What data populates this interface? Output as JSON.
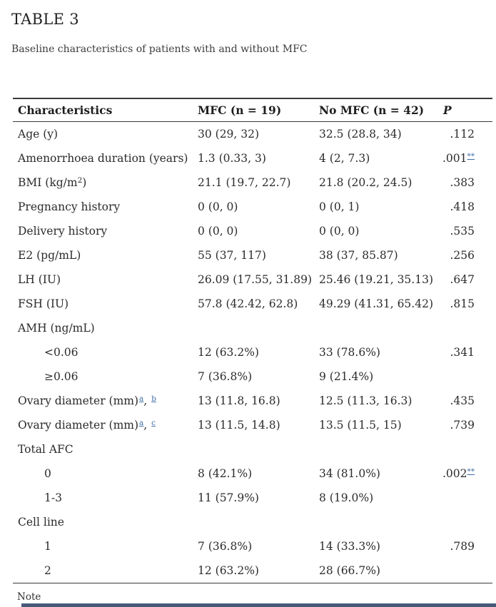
{
  "title": "TABLE 3",
  "caption": "Baseline characteristics of patients with and without MFC",
  "note": "Note",
  "colors": {
    "text": "#2b2b2b",
    "rule": "#3a3a3a",
    "footnote_link": "#3f6da5",
    "bottom_bar": "#46597a"
  },
  "table": {
    "columns": [
      "Characteristics",
      "MFC (n = 19)",
      "No MFC (n = 42)",
      "P"
    ],
    "rows": [
      {
        "label_parts": [
          {
            "t": "Age (y)"
          }
        ],
        "mfc": "30 (29, 32)",
        "no_mfc": "32.5 (28.8, 34)",
        "p": ".112"
      },
      {
        "label_parts": [
          {
            "t": "Amenorrhoea duration (years)"
          }
        ],
        "mfc": "1.3 (0.33, 3)",
        "no_mfc": "4 (2, 7.3)",
        "p": ".001",
        "p_sup": "**"
      },
      {
        "label_parts": [
          {
            "t": "BMI (kg/m"
          },
          {
            "t": "2",
            "sup": true
          },
          {
            "t": ")"
          }
        ],
        "mfc": "21.1 (19.7, 22.7)",
        "no_mfc": "21.8 (20.2, 24.5)",
        "p": ".383"
      },
      {
        "label_parts": [
          {
            "t": "Pregnancy history"
          }
        ],
        "mfc": "0 (0, 0)",
        "no_mfc": "0 (0, 1)",
        "p": ".418"
      },
      {
        "label_parts": [
          {
            "t": "Delivery history"
          }
        ],
        "mfc": "0 (0, 0)",
        "no_mfc": "0 (0, 0)",
        "p": ".535"
      },
      {
        "label_parts": [
          {
            "t": "E2 (pg/mL)"
          }
        ],
        "mfc": "55 (37, 117)",
        "no_mfc": "38 (37, 85.87)",
        "p": ".256"
      },
      {
        "label_parts": [
          {
            "t": "LH (IU)"
          }
        ],
        "mfc": "26.09 (17.55, 31.89)",
        "no_mfc": "25.46 (19.21, 35.13)",
        "p": ".647"
      },
      {
        "label_parts": [
          {
            "t": "FSH (IU)"
          }
        ],
        "mfc": "57.8 (42.42, 62.8)",
        "no_mfc": "49.29 (41.31, 65.42)",
        "p": ".815"
      },
      {
        "group": true,
        "label_parts": [
          {
            "t": "AMH (ng/mL)"
          }
        ],
        "mfc": "",
        "no_mfc": "",
        "p": ""
      },
      {
        "indent": true,
        "label_parts": [
          {
            "t": "<0.06"
          }
        ],
        "mfc": "12 (63.2%)",
        "no_mfc": "33 (78.6%)",
        "p": ".341"
      },
      {
        "indent": true,
        "label_parts": [
          {
            "t": "≥0.06"
          }
        ],
        "mfc": "7 (36.8%)",
        "no_mfc": "9 (21.4%)",
        "p": ""
      },
      {
        "label_parts": [
          {
            "t": "Ovary diameter (mm)"
          },
          {
            "t": "a",
            "sup": true,
            "link": true
          },
          {
            "t": ", "
          },
          {
            "t": "b",
            "sup": true,
            "link": true
          }
        ],
        "mfc": "13 (11.8, 16.8)",
        "no_mfc": "12.5 (11.3, 16.3)",
        "p": ".435"
      },
      {
        "label_parts": [
          {
            "t": "Ovary diameter (mm)"
          },
          {
            "t": "a",
            "sup": true,
            "link": true
          },
          {
            "t": ", "
          },
          {
            "t": "c",
            "sup": true,
            "link": true
          }
        ],
        "mfc": "13 (11.5, 14.8)",
        "no_mfc": "13.5 (11.5, 15)",
        "p": ".739"
      },
      {
        "group": true,
        "label_parts": [
          {
            "t": "Total AFC"
          }
        ],
        "mfc": "",
        "no_mfc": "",
        "p": ""
      },
      {
        "indent": true,
        "label_parts": [
          {
            "t": "0"
          }
        ],
        "mfc": "8 (42.1%)",
        "no_mfc": "34 (81.0%)",
        "p": ".002",
        "p_sup": "**"
      },
      {
        "indent": true,
        "label_parts": [
          {
            "t": "1-3"
          }
        ],
        "mfc": "11 (57.9%)",
        "no_mfc": "8 (19.0%)",
        "p": ""
      },
      {
        "group": true,
        "label_parts": [
          {
            "t": "Cell line"
          }
        ],
        "mfc": "",
        "no_mfc": "",
        "p": ""
      },
      {
        "indent": true,
        "label_parts": [
          {
            "t": "1"
          }
        ],
        "mfc": "7 (36.8%)",
        "no_mfc": "14 (33.3%)",
        "p": ".789"
      },
      {
        "indent": true,
        "label_parts": [
          {
            "t": "2"
          }
        ],
        "mfc": "12 (63.2%)",
        "no_mfc": "28 (66.7%)",
        "p": ""
      }
    ]
  }
}
